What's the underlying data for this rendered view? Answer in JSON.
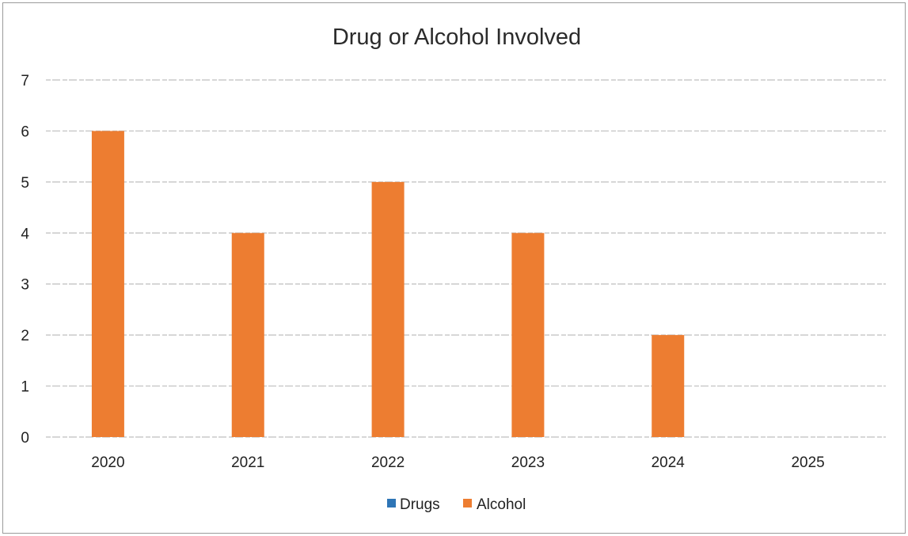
{
  "chart_data": {
    "type": "bar",
    "title": "Drug or Alcohol Involved",
    "categories": [
      "2020",
      "2021",
      "2022",
      "2023",
      "2024",
      "2025"
    ],
    "series": [
      {
        "name": "Drugs",
        "color": "#2e75b6",
        "values": [
          0,
          0,
          0,
          0,
          0,
          0
        ]
      },
      {
        "name": "Alcohol",
        "color": "#ed7d31",
        "values": [
          6,
          4,
          5,
          4,
          2,
          0
        ]
      }
    ],
    "ylim": [
      0,
      7
    ],
    "yticks": [
      "0",
      "1",
      "2",
      "3",
      "4",
      "5",
      "6",
      "7"
    ],
    "xlabel": "",
    "ylabel": "",
    "grid": true,
    "legend_position": "bottom",
    "gridline_color": "#bfbfbf"
  }
}
